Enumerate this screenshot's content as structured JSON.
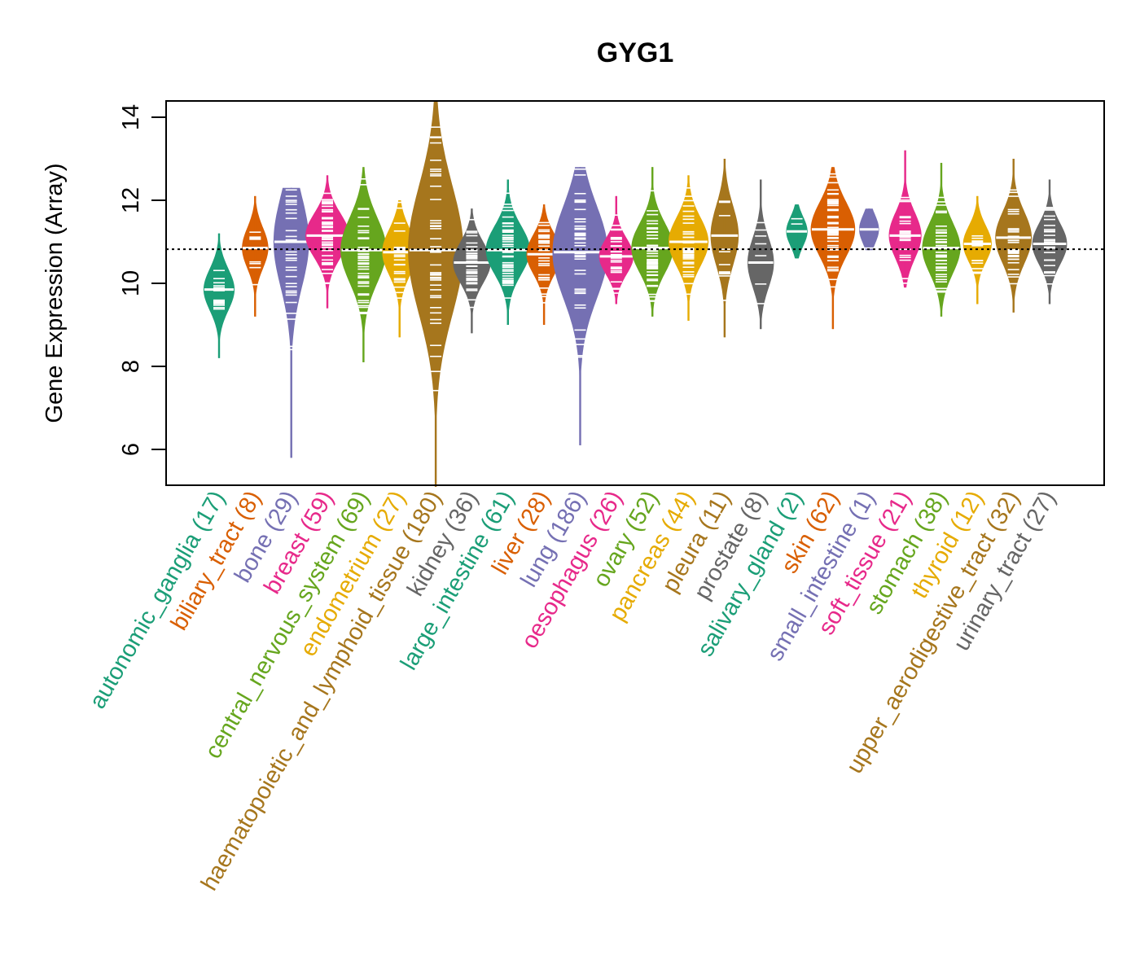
{
  "chart_data": {
    "type": "beanplot",
    "title": "GYG1",
    "xlabel": "",
    "ylabel": "Gene Expression (Array)",
    "ylim": [
      5.1,
      14.4
    ],
    "yticks": [
      6,
      8,
      10,
      12,
      14
    ],
    "reference_line": 10.82,
    "grid": false,
    "legend": "none",
    "palette": [
      "#1B9E77",
      "#D95F02",
      "#7570B3",
      "#E7298A",
      "#66A61E",
      "#E6AB02",
      "#A6761D",
      "#666666"
    ],
    "groups": [
      {
        "name": "autonomic_ganglia",
        "n": 17,
        "label": "autonomic_ganglia (17)",
        "color": "#1B9E77",
        "min": 8.2,
        "max": 11.2,
        "median": 9.85
      },
      {
        "name": "biliary_tract",
        "n": 8,
        "label": "biliary_tract (8)",
        "color": "#D95F02",
        "min": 9.2,
        "max": 12.1,
        "median": 10.85
      },
      {
        "name": "bone",
        "n": 29,
        "label": "bone (29)",
        "color": "#7570B3",
        "min": 5.8,
        "max": 12.3,
        "median": 11.0
      },
      {
        "name": "breast",
        "n": 59,
        "label": "breast (59)",
        "color": "#E7298A",
        "min": 9.4,
        "max": 12.6,
        "median": 11.15
      },
      {
        "name": "central_nervous_system",
        "n": 69,
        "label": "central_nervous_system (69)",
        "color": "#66A61E",
        "min": 8.1,
        "max": 12.8,
        "median": 10.8
      },
      {
        "name": "endometrium",
        "n": 27,
        "label": "endometrium (27)",
        "color": "#E6AB02",
        "min": 8.7,
        "max": 12.0,
        "median": 10.75
      },
      {
        "name": "haematopoietic_and_lymphoid_tissue",
        "n": 180,
        "label": "haematopoietic_and_lymphoid_tissue (180)",
        "color": "#A6761D",
        "min": 5.1,
        "max": 14.4,
        "median": 10.8
      },
      {
        "name": "kidney",
        "n": 36,
        "label": "kidney (36)",
        "color": "#666666",
        "min": 8.8,
        "max": 11.8,
        "median": 10.5
      },
      {
        "name": "large_intestine",
        "n": 61,
        "label": "large_intestine (61)",
        "color": "#1B9E77",
        "min": 9.0,
        "max": 12.5,
        "median": 10.8
      },
      {
        "name": "liver",
        "n": 28,
        "label": "liver (28)",
        "color": "#D95F02",
        "min": 9.0,
        "max": 11.9,
        "median": 10.7
      },
      {
        "name": "lung",
        "n": 186,
        "label": "lung (186)",
        "color": "#7570B3",
        "min": 6.1,
        "max": 12.8,
        "median": 10.75
      },
      {
        "name": "oesophagus",
        "n": 26,
        "label": "oesophagus (26)",
        "color": "#E7298A",
        "min": 9.5,
        "max": 12.1,
        "median": 10.65
      },
      {
        "name": "ovary",
        "n": 52,
        "label": "ovary (52)",
        "color": "#66A61E",
        "min": 9.2,
        "max": 12.8,
        "median": 10.85
      },
      {
        "name": "pancreas",
        "n": 44,
        "label": "pancreas (44)",
        "color": "#E6AB02",
        "min": 9.1,
        "max": 12.6,
        "median": 11.0
      },
      {
        "name": "pleura",
        "n": 11,
        "label": "pleura (11)",
        "color": "#A6761D",
        "min": 8.7,
        "max": 13.0,
        "median": 11.15
      },
      {
        "name": "prostate",
        "n": 8,
        "label": "prostate (8)",
        "color": "#666666",
        "min": 8.9,
        "max": 12.5,
        "median": 10.5
      },
      {
        "name": "salivary_gland",
        "n": 2,
        "label": "salivary_gland (2)",
        "color": "#1B9E77",
        "min": 10.6,
        "max": 11.9,
        "median": 11.25
      },
      {
        "name": "skin",
        "n": 62,
        "label": "skin (62)",
        "color": "#D95F02",
        "min": 8.9,
        "max": 12.8,
        "median": 11.3
      },
      {
        "name": "small_intestine",
        "n": 1,
        "label": "small_intestine (1)",
        "color": "#7570B3",
        "min": 10.8,
        "max": 11.8,
        "median": 11.3
      },
      {
        "name": "soft_tissue",
        "n": 21,
        "label": "soft_tissue (21)",
        "color": "#E7298A",
        "min": 9.9,
        "max": 13.2,
        "median": 11.15
      },
      {
        "name": "stomach",
        "n": 38,
        "label": "stomach (38)",
        "color": "#66A61E",
        "min": 9.2,
        "max": 12.9,
        "median": 10.85
      },
      {
        "name": "thyroid",
        "n": 12,
        "label": "thyroid (12)",
        "color": "#E6AB02",
        "min": 9.5,
        "max": 12.1,
        "median": 10.95
      },
      {
        "name": "upper_aerodigestive_tract",
        "n": 32,
        "label": "upper_aerodigestive_tract (32)",
        "color": "#A6761D",
        "min": 9.3,
        "max": 13.0,
        "median": 11.1
      },
      {
        "name": "urinary_tract",
        "n": 27,
        "label": "urinary_tract (27)",
        "color": "#666666",
        "min": 9.5,
        "max": 12.5,
        "median": 10.95
      }
    ]
  }
}
